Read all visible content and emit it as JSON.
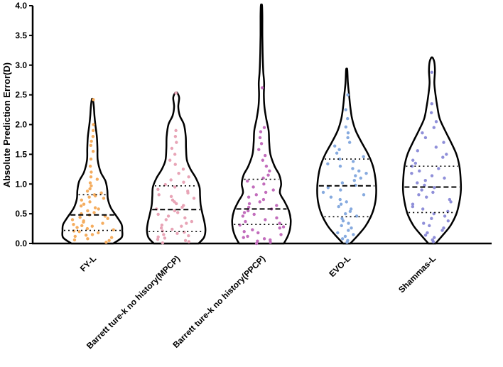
{
  "chart_data": {
    "type": "violin",
    "title": "",
    "xlabel": "",
    "ylabel": "Absolute Prediction Error(D)",
    "ylim": [
      0,
      4
    ],
    "yticks": [
      "0.0",
      "0.5",
      "1.0",
      "1.5",
      "2.0",
      "2.5",
      "3.0",
      "3.5",
      "4.0"
    ],
    "grid": false,
    "series": [
      {
        "name": "FY-L",
        "color": "#f5ad5f",
        "min": 0.0,
        "max": 2.42,
        "q1": 0.22,
        "median": 0.48,
        "q3": 0.82,
        "density": [
          [
            0.0,
            0.7
          ],
          [
            0.1,
            0.98
          ],
          [
            0.22,
            1.0
          ],
          [
            0.32,
            0.98
          ],
          [
            0.45,
            0.82
          ],
          [
            0.6,
            0.62
          ],
          [
            0.75,
            0.52
          ],
          [
            0.9,
            0.5
          ],
          [
            1.05,
            0.44
          ],
          [
            1.2,
            0.28
          ],
          [
            1.4,
            0.18
          ],
          [
            1.6,
            0.17
          ],
          [
            1.8,
            0.15
          ],
          [
            2.0,
            0.1
          ],
          [
            2.15,
            0.07
          ],
          [
            2.3,
            0.05
          ],
          [
            2.42,
            0.02
          ]
        ],
        "points": [
          0.02,
          0.05,
          0.06,
          0.08,
          0.1,
          0.12,
          0.14,
          0.15,
          0.18,
          0.2,
          0.21,
          0.23,
          0.25,
          0.27,
          0.29,
          0.3,
          0.32,
          0.34,
          0.36,
          0.38,
          0.4,
          0.42,
          0.44,
          0.46,
          0.48,
          0.5,
          0.52,
          0.55,
          0.58,
          0.6,
          0.63,
          0.66,
          0.7,
          0.73,
          0.76,
          0.78,
          0.8,
          0.82,
          0.85,
          0.88,
          0.92,
          0.97,
          1.02,
          1.08,
          1.12,
          1.2,
          1.3,
          1.42,
          1.55,
          1.65,
          1.72,
          1.8,
          1.9,
          2.0,
          2.42
        ]
      },
      {
        "name": "Barrett ture-k no history(MPCP)",
        "color": "#e8a4b6",
        "min": 0.0,
        "max": 2.53,
        "q1": 0.2,
        "median": 0.57,
        "q3": 0.97,
        "density": [
          [
            0.0,
            0.75
          ],
          [
            0.1,
            0.93
          ],
          [
            0.22,
            0.98
          ],
          [
            0.35,
            0.95
          ],
          [
            0.5,
            0.88
          ],
          [
            0.65,
            0.82
          ],
          [
            0.8,
            0.8
          ],
          [
            0.95,
            0.78
          ],
          [
            1.1,
            0.66
          ],
          [
            1.25,
            0.48
          ],
          [
            1.4,
            0.36
          ],
          [
            1.6,
            0.33
          ],
          [
            1.8,
            0.32
          ],
          [
            2.0,
            0.26
          ],
          [
            2.15,
            0.12
          ],
          [
            2.3,
            0.07
          ],
          [
            2.45,
            0.1
          ],
          [
            2.53,
            0.04
          ]
        ],
        "points": [
          0.01,
          0.03,
          0.05,
          0.07,
          0.09,
          0.11,
          0.13,
          0.15,
          0.17,
          0.19,
          0.21,
          0.24,
          0.26,
          0.29,
          0.31,
          0.34,
          0.37,
          0.4,
          0.43,
          0.46,
          0.49,
          0.52,
          0.55,
          0.58,
          0.61,
          0.64,
          0.67,
          0.7,
          0.73,
          0.76,
          0.79,
          0.82,
          0.85,
          0.88,
          0.91,
          0.95,
          0.99,
          1.03,
          1.07,
          1.12,
          1.18,
          1.25,
          1.33,
          1.4,
          1.5,
          1.6,
          1.7,
          1.8,
          1.9,
          2.53
        ]
      },
      {
        "name": "Barrett ture-k no history(PPCP)",
        "color": "#c26dbc",
        "min": 0.0,
        "max": 4.0,
        "q1": 0.32,
        "median": 0.58,
        "q3": 1.08,
        "density": [
          [
            0.0,
            0.75
          ],
          [
            0.12,
            0.88
          ],
          [
            0.25,
            0.96
          ],
          [
            0.4,
            0.98
          ],
          [
            0.55,
            0.92
          ],
          [
            0.7,
            0.78
          ],
          [
            0.85,
            0.62
          ],
          [
            1.0,
            0.66
          ],
          [
            1.15,
            0.6
          ],
          [
            1.3,
            0.44
          ],
          [
            1.5,
            0.3
          ],
          [
            1.7,
            0.26
          ],
          [
            1.9,
            0.24
          ],
          [
            2.1,
            0.16
          ],
          [
            2.3,
            0.1
          ],
          [
            2.5,
            0.08
          ],
          [
            2.7,
            0.09
          ],
          [
            2.9,
            0.06
          ],
          [
            3.2,
            0.04
          ],
          [
            3.5,
            0.03
          ],
          [
            3.8,
            0.03
          ],
          [
            4.0,
            0.02
          ]
        ],
        "points": [
          0.0,
          0.02,
          0.04,
          0.06,
          0.08,
          0.1,
          0.12,
          0.15,
          0.18,
          0.2,
          0.23,
          0.26,
          0.28,
          0.31,
          0.34,
          0.37,
          0.4,
          0.43,
          0.46,
          0.49,
          0.52,
          0.55,
          0.58,
          0.61,
          0.64,
          0.67,
          0.7,
          0.74,
          0.78,
          0.82,
          0.86,
          0.9,
          0.95,
          1.0,
          1.05,
          1.1,
          1.15,
          1.22,
          1.3,
          1.4,
          1.48,
          1.58,
          1.68,
          1.78,
          1.88,
          1.95,
          2.62
        ]
      },
      {
        "name": "EVO-L",
        "color": "#86aadf",
        "min": 0.0,
        "max": 2.92,
        "q1": 0.45,
        "median": 0.97,
        "q3": 1.42,
        "density": [
          [
            0.0,
            0.12
          ],
          [
            0.15,
            0.4
          ],
          [
            0.3,
            0.64
          ],
          [
            0.5,
            0.85
          ],
          [
            0.7,
            0.96
          ],
          [
            0.9,
            0.99
          ],
          [
            1.1,
            0.96
          ],
          [
            1.3,
            0.88
          ],
          [
            1.5,
            0.72
          ],
          [
            1.7,
            0.5
          ],
          [
            1.9,
            0.3
          ],
          [
            2.1,
            0.18
          ],
          [
            2.3,
            0.12
          ],
          [
            2.5,
            0.08
          ],
          [
            2.7,
            0.04
          ],
          [
            2.92,
            0.02
          ]
        ],
        "points": [
          0.02,
          0.05,
          0.08,
          0.12,
          0.15,
          0.18,
          0.22,
          0.26,
          0.3,
          0.34,
          0.38,
          0.42,
          0.46,
          0.5,
          0.54,
          0.58,
          0.62,
          0.66,
          0.7,
          0.74,
          0.78,
          0.82,
          0.86,
          0.9,
          0.94,
          0.98,
          1.02,
          1.06,
          1.1,
          1.14,
          1.18,
          1.22,
          1.26,
          1.3,
          1.34,
          1.38,
          1.42,
          1.46,
          1.52,
          1.58,
          1.64,
          1.7,
          1.78,
          1.86,
          1.96,
          2.1,
          2.25,
          2.5
        ]
      },
      {
        "name": "Shammas-L",
        "color": "#8f8fd9",
        "min": 0.0,
        "max": 3.12,
        "q1": 0.52,
        "median": 0.95,
        "q3": 1.3,
        "density": [
          [
            0.0,
            0.12
          ],
          [
            0.15,
            0.38
          ],
          [
            0.3,
            0.62
          ],
          [
            0.5,
            0.82
          ],
          [
            0.7,
            0.92
          ],
          [
            0.9,
            0.97
          ],
          [
            1.1,
            0.96
          ],
          [
            1.3,
            0.92
          ],
          [
            1.5,
            0.82
          ],
          [
            1.7,
            0.64
          ],
          [
            1.9,
            0.44
          ],
          [
            2.1,
            0.26
          ],
          [
            2.3,
            0.18
          ],
          [
            2.5,
            0.12
          ],
          [
            2.7,
            0.08
          ],
          [
            2.9,
            0.1
          ],
          [
            3.05,
            0.08
          ],
          [
            3.12,
            0.03
          ]
        ],
        "points": [
          0.03,
          0.06,
          0.1,
          0.14,
          0.18,
          0.22,
          0.26,
          0.3,
          0.34,
          0.38,
          0.42,
          0.46,
          0.5,
          0.54,
          0.58,
          0.62,
          0.66,
          0.7,
          0.74,
          0.78,
          0.82,
          0.86,
          0.9,
          0.94,
          0.98,
          1.02,
          1.06,
          1.1,
          1.14,
          1.18,
          1.22,
          1.26,
          1.3,
          1.35,
          1.4,
          1.45,
          1.5,
          1.56,
          1.62,
          1.7,
          1.78,
          1.86,
          1.95,
          2.05,
          2.2,
          2.35,
          2.88
        ]
      }
    ]
  }
}
